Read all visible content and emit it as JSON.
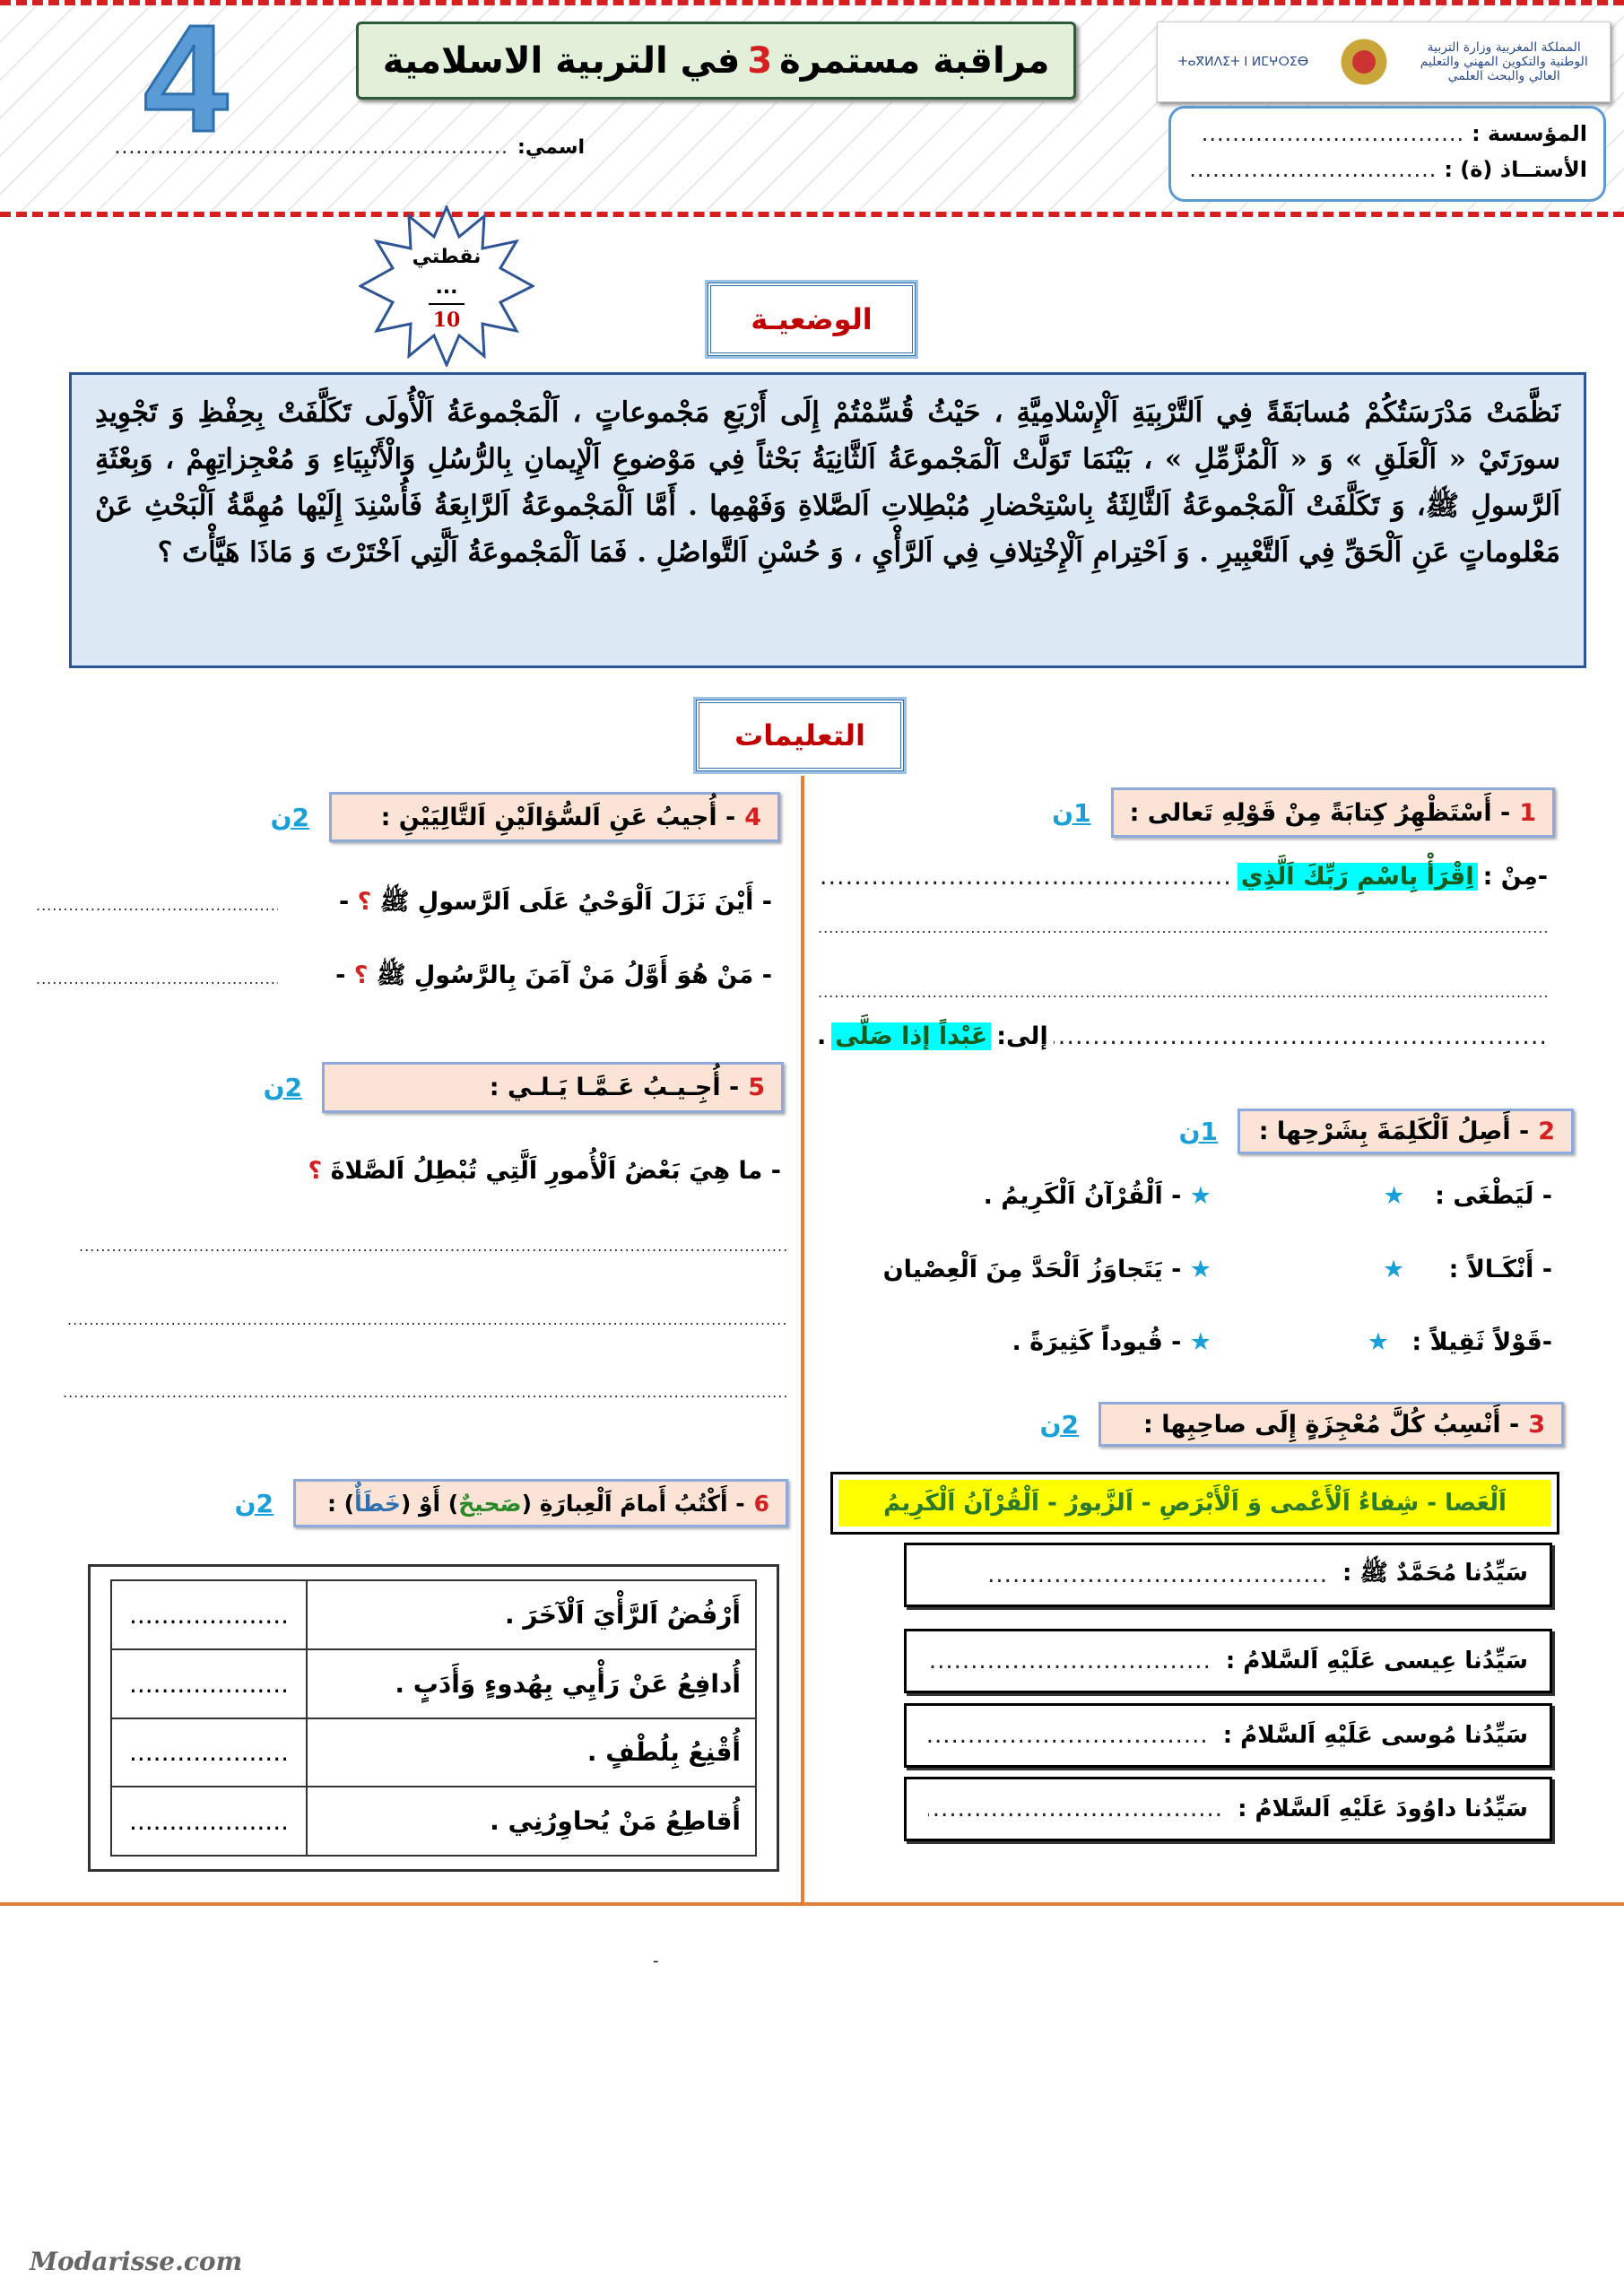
{
  "header": {
    "level": "4",
    "title_prefix": "مراقبة مستمرة",
    "title_number": "3",
    "title_suffix": "في التربية الاسلامية",
    "logo_arabic": "المملكة المغربية وزارة التربية الوطنية والتكوين المهني والتعليم العالي والبحث العلمي",
    "logo_tifinagh": "ⵜⴰⴳⵍⴷⵉⵜ ⵏ ⵍⵎⵖⵔⵉⴱ",
    "school_label": "المؤسسة :",
    "teacher_label": "الأستــاذ (ة) :",
    "name_label": "اسمي:",
    "dots": "...................................................................................."
  },
  "score": {
    "label": "نقطتي",
    "value": "...",
    "total": "10"
  },
  "situation": {
    "label": "الوضعيـة",
    "text": "نَظَّمَتْ مَدْرَسَتُكُمْ مُسابَقَةً فِي اَلتَّرْبِيَةِ اَلْإِسْلامِيَّةِ ، حَيْثُ قُسِّمْتُمْ إِلَى أَرْبَعِ مَجْموعاتٍ ، اَلْمَجْموعَةُ اَلْأُولَى تَكَلَّفَتْ بِحِفْظِ وَ تَجْوِيدِ سورَتَيْ « اَلْعَلَقِ » وَ « اَلْمُزَّمِّلِ » ، بَيْنَمَا تَوَلَّتْ اَلْمَجْموعَةُ اَلثَّانِيَةُ بَحْثاً فِي مَوْضوعِ اَلْإِيمانِ بِالرُّسُلِ وَالْأَنْبِيَاءِ وَ مُعْجِزاتِهِمْ ، وَبِعْثَةِ اَلرَّسولِ ﷺ، وَ تَكَلَّفَتْ اَلْمَجْموعَةُ اَلثَّالِثَةُ بِاسْتِحْضارِ مُبْطِلاتِ اَلصَّلاةِ وَفَهْمِها . أَمَّا اَلْمَجْموعَةُ اَلرَّابِعَةُ فَأُسْنِدَ إِلَيْها مُهِمَّةُ اَلْبَحْثِ عَنْ مَعْلوماتٍ عَنِ اَلْحَقِّ فِي اَلتَّعْبِيرِ . وَ اَحْتِرامِ اَلْإِخْتِلافِ فِي اَلرَّأْيِ ، وَ حُسْنِ اَلتَّواصُلِ . فَمَا اَلْمَجْموعَةُ اَلَّتِي اَخْتَرْتَ وَ مَاذَا هَيَّأْتَ ؟"
  },
  "instructions_label": "التعليمات",
  "q1": {
    "num": "1",
    "text": "- أَسْتَظْهِرُ كِتابَةً مِنْ قَوْلِهِ تَعالى :",
    "points": "1ن",
    "from_label": "-مِنْ :",
    "from_verse": "اِقْرَأْ بِاسْمِ رَبِّكَ اَلَّذِي",
    "to_label": "إلى:",
    "to_verse": "عَبْداً إذا صَلَّى",
    "end": "."
  },
  "q2": {
    "num": "2",
    "text": "- أَصِلُ اَلْكَلِمَةَ بِشَرْحِها :",
    "points": "1ن",
    "words": [
      "- لَيَطْغَى :",
      "- أَنْكَـالاً :",
      "-قَوْلاً ثَقِيلاً :"
    ],
    "meanings": [
      "- اَلْقُرْآنُ اَلْكَرِيمُ .",
      "- يَتَجاوَزُ اَلْحَدَّ مِنَ اَلْعِصْيان",
      "- قُيوداً كَثِيرَةً ."
    ],
    "bullet": "★"
  },
  "q3": {
    "num": "3",
    "text": "- أَنْسِبُ كُلَّ مُعْجِزَةٍ إِلَى صاحِبِها :",
    "points": "2ن",
    "options": "اَلْعَصا - شِفاءُ اَلْأَعْمى وَ اَلْأَبْرَصِ - اَلزَّبورُ - اَلْقُرْآنُ اَلْكَرِيمُ",
    "prophets": [
      "سَيِّدُنا مُحَمَّدٌ ﷺ :",
      "سَيِّدُنا عِيسى عَلَيْهِ اَلسَّلامُ :",
      "سَيِّدُنا مُوسى عَلَيْهِ اَلسَّلامُ :",
      "سَيِّدُنا داوُودَ عَلَيْهِ اَلسَّلامُ :"
    ]
  },
  "q4": {
    "num": "4",
    "text": "- أُجيبُ عَنِ اَلسُّؤالَيْنِ اَلتَّالِيَيْنِ :",
    "points": "2ن",
    "questions": [
      "- أَيْنَ نَزَلَ اَلْوَحْيُ عَلَى اَلرَّسولِ ﷺ",
      "- مَنْ هُوَ أَوَّلُ مَنْ آمَنَ بِالرَّسُولِ ﷺ"
    ],
    "qmark": "؟",
    "dash": "-"
  },
  "q5": {
    "num": "5",
    "text": "- أُجِـيـبُ عَـمَّـا يَـلـي :",
    "points": "2ن",
    "question": "- ما هِيَ بَعْضُ اَلْأُمورِ اَلَّتِي تُبْطِلُ اَلصَّلاةَ",
    "qmark": "؟"
  },
  "q6": {
    "num": "6",
    "text_a": "- أَكْتُبُ أَمامَ اَلْعِبارَةِ (",
    "correct": "صَحيحٌ",
    "text_b": ") أَوْ (",
    "wrong": "خَطَأٌ",
    "text_c": ") :",
    "points": "2ن",
    "statements": [
      "أَرْفُضُ اَلرَّأْيَ اَلْآخَرَ .",
      "أُدافِعُ عَنْ رَأْيِي بِهُدوءٍ وَأَدَبٍ .",
      "أُقْنِعُ بِلُطْفٍ .",
      "أُقاطِعُ مَنْ يُحاوِرُنِي ."
    ],
    "answer_dots": "...................."
  },
  "footer": {
    "site": "Modarisse.com",
    "dash": "-"
  },
  "colors": {
    "accent_red": "#d42020",
    "points_blue": "#1aa0d8",
    "question_bg": "#fbe4d5",
    "situation_bg": "#dce9f5",
    "divider_orange": "#e0803a",
    "highlight_cyan": "#00ffff",
    "options_yellow": "#ffff00"
  }
}
